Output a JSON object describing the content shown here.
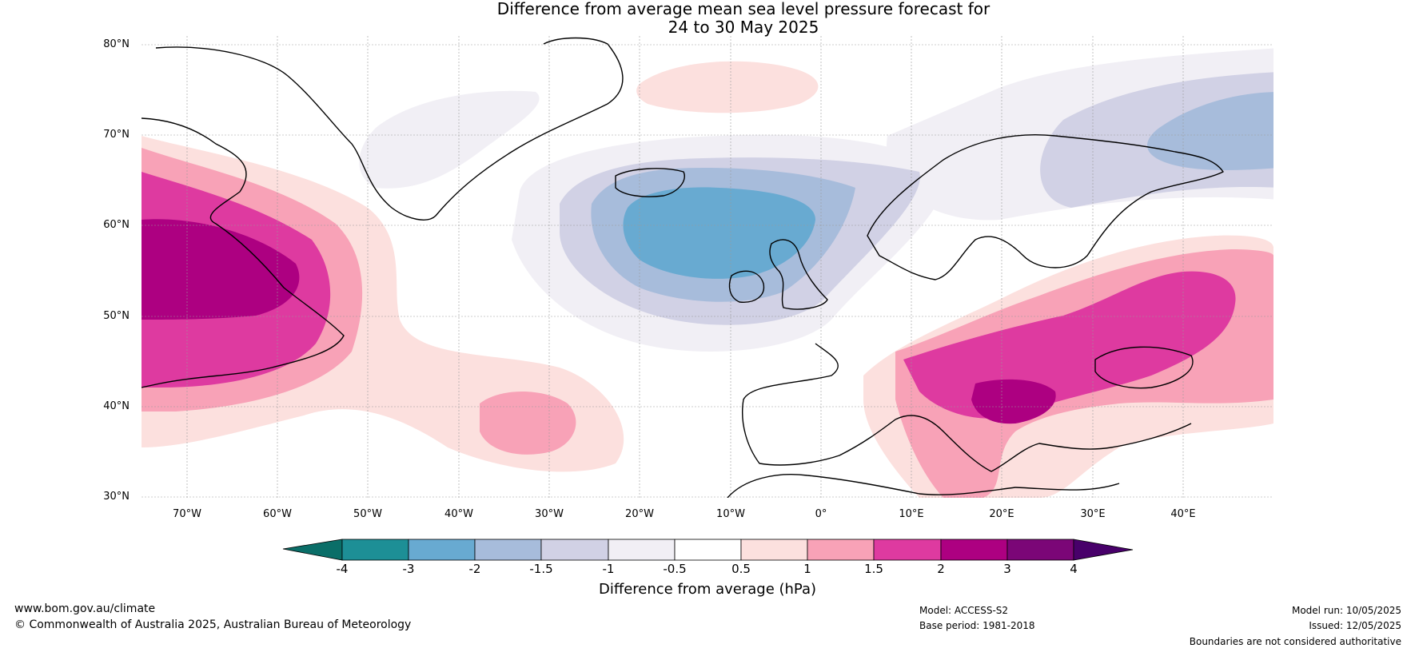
{
  "title": {
    "line1": "Difference from average mean sea level pressure forecast for",
    "line2": "24 to 30 May 2025"
  },
  "map": {
    "projection": "equirectangular",
    "lon_range": [
      -75,
      50
    ],
    "lat_range": [
      30,
      81
    ],
    "lat_labels": [
      "80°N",
      "70°N",
      "60°N",
      "50°N",
      "40°N",
      "30°N"
    ],
    "lon_labels": [
      "70°W",
      "60°W",
      "50°W",
      "40°W",
      "30°W",
      "20°W",
      "10°W",
      "0°",
      "10°E",
      "20°E",
      "30°E",
      "40°E"
    ],
    "colors": {
      "neg_4": "#0a6e68",
      "neg_3": "#1d8f96",
      "neg_2": "#68aad1",
      "neg_1_5": "#a7bcdb",
      "neg_1": "#d1d1e5",
      "neg_0_5": "#f1eff5",
      "zero": "#ffffff",
      "pos_0_5": "#fce0de",
      "pos_1": "#f8a2b7",
      "pos_1_5": "#de3aa0",
      "pos_2": "#ad0081",
      "pos_3": "#7b0677",
      "pos_4": "#48006a"
    }
  },
  "colorbar": {
    "ticks": [
      "-4",
      "-3",
      "-2",
      "-1.5",
      "-1",
      "-0.5",
      "0.5",
      "1",
      "1.5",
      "2",
      "3",
      "4"
    ],
    "label": "Difference from average (hPa)"
  },
  "footer": {
    "website": "www.bom.gov.au/climate",
    "copyright": "© Commonwealth of Australia 2025, Australian Bureau of Meteorology",
    "model": "Model: ACCESS-S2",
    "base_period": "Base period: 1981-2018",
    "model_run": "Model run: 10/05/2025",
    "issued": "Issued: 12/05/2025",
    "disclaimer": "Boundaries are not considered authoritative"
  }
}
